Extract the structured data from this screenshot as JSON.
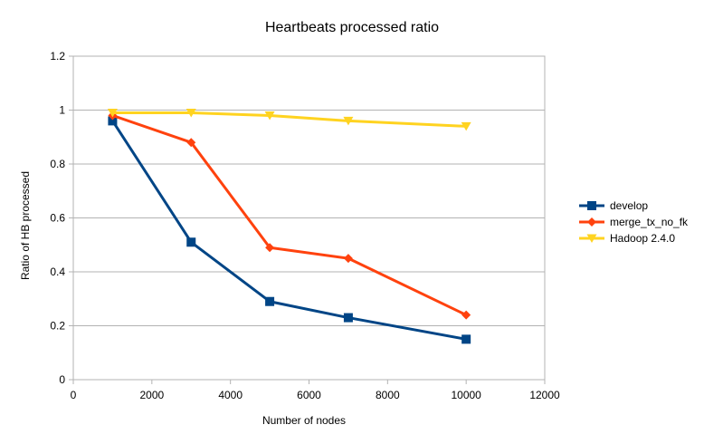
{
  "chart_data": {
    "type": "line",
    "title": "Heartbeats processed ratio",
    "xlabel": "Number of nodes",
    "ylabel": "Ratio of HB processed",
    "xlim": [
      0,
      12000
    ],
    "ylim": [
      0,
      1.2
    ],
    "xticks": [
      0,
      2000,
      4000,
      6000,
      8000,
      10000,
      12000
    ],
    "yticks": [
      0,
      0.2,
      0.4,
      0.6,
      0.8,
      1,
      1.2
    ],
    "x_tick_labels": [
      "0",
      "2000",
      "4000",
      "6000",
      "8000",
      "10000",
      "12000"
    ],
    "y_tick_labels": [
      "0",
      "0.2",
      "0.4",
      "0.6",
      "0.8",
      "1",
      "1.2"
    ],
    "grid": "horizontal",
    "legend_position": "right",
    "series": [
      {
        "name": "develop",
        "color": "#004586",
        "marker": "square",
        "x": [
          1000,
          3000,
          5000,
          7000,
          10000
        ],
        "y": [
          0.96,
          0.51,
          0.29,
          0.23,
          0.15
        ]
      },
      {
        "name": "merge_tx_no_fk",
        "color": "#ff420e",
        "marker": "diamond",
        "x": [
          1000,
          3000,
          5000,
          7000,
          10000
        ],
        "y": [
          0.98,
          0.88,
          0.49,
          0.45,
          0.24
        ]
      },
      {
        "name": "Hadoop 2.4.0",
        "color": "#ffd320",
        "marker": "triangle-down",
        "x": [
          1000,
          3000,
          5000,
          7000,
          10000
        ],
        "y": [
          0.99,
          0.99,
          0.98,
          0.96,
          0.94
        ]
      }
    ]
  }
}
